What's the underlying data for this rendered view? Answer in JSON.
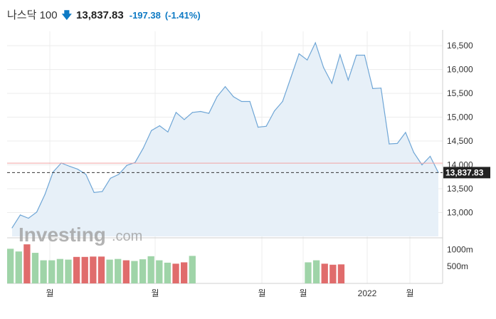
{
  "header": {
    "title": "나스닥 100",
    "price": "13,837.83",
    "change": "-197.38",
    "change_pct": "(-1.41%)"
  },
  "colors": {
    "line": "#6fa6d6",
    "area": "#e7f0f8",
    "up_bar": "#9fd4a8",
    "down_bar": "#e06c6c",
    "arrow": "#0e7ac4",
    "ref_line": "#f2a3a3",
    "last_label_bg": "#222222"
  },
  "watermark": {
    "brand": "Investing",
    "suffix": ".com"
  },
  "chart_data": [
    {
      "type": "area",
      "y_ticks": [
        "16,500",
        "16,000",
        "15,500",
        "15,000",
        "14,500",
        "14,000",
        "13,500",
        "13,000"
      ],
      "y_tick_values": [
        16500,
        16000,
        15500,
        15000,
        14500,
        14000,
        13500,
        13000
      ],
      "ylim": [
        12500,
        16800
      ],
      "values": [
        12680,
        12950,
        12880,
        13010,
        13380,
        13850,
        14040,
        13970,
        13910,
        13800,
        13420,
        13440,
        13720,
        13800,
        13990,
        14050,
        14350,
        14720,
        14820,
        14690,
        15100,
        14950,
        15100,
        15120,
        15080,
        15430,
        15640,
        15430,
        15330,
        15330,
        14790,
        14810,
        15130,
        15330,
        15830,
        16330,
        16200,
        16560,
        16040,
        15710,
        16310,
        15780,
        16300,
        16300,
        15600,
        15610,
        14440,
        14450,
        14680,
        14260,
        14000,
        14180,
        13837.83
      ],
      "reference_value": 14035.21,
      "last_value": 13837.83,
      "last_label": "13,837.83",
      "x_tick_labels": [
        "월",
        "월",
        "월",
        "월",
        "2022",
        "월"
      ],
      "grid": true
    },
    {
      "type": "bar",
      "y_ticks": [
        "1000m",
        "500m"
      ],
      "y_tick_values": [
        1000,
        500
      ],
      "ylim": [
        0,
        1300
      ],
      "values": [
        1020,
        940,
        1150,
        900,
        680,
        680,
        720,
        700,
        780,
        780,
        790,
        790,
        700,
        720,
        680,
        660,
        710,
        800,
        680,
        610,
        580,
        620,
        810,
        null,
        null,
        null,
        null,
        null,
        null,
        null,
        null,
        null,
        null,
        null,
        null,
        null,
        620,
        680,
        580,
        550,
        560
      ],
      "direction": [
        "up",
        "up",
        "down",
        "up",
        "up",
        "up",
        "up",
        "up",
        "down",
        "down",
        "down",
        "down",
        "up",
        "up",
        "down",
        "up",
        "up",
        "up",
        "up",
        "up",
        "down",
        "down",
        "up",
        null,
        null,
        null,
        null,
        null,
        null,
        null,
        null,
        null,
        null,
        null,
        null,
        null,
        "up",
        "up",
        "down",
        "down",
        "down"
      ]
    }
  ]
}
